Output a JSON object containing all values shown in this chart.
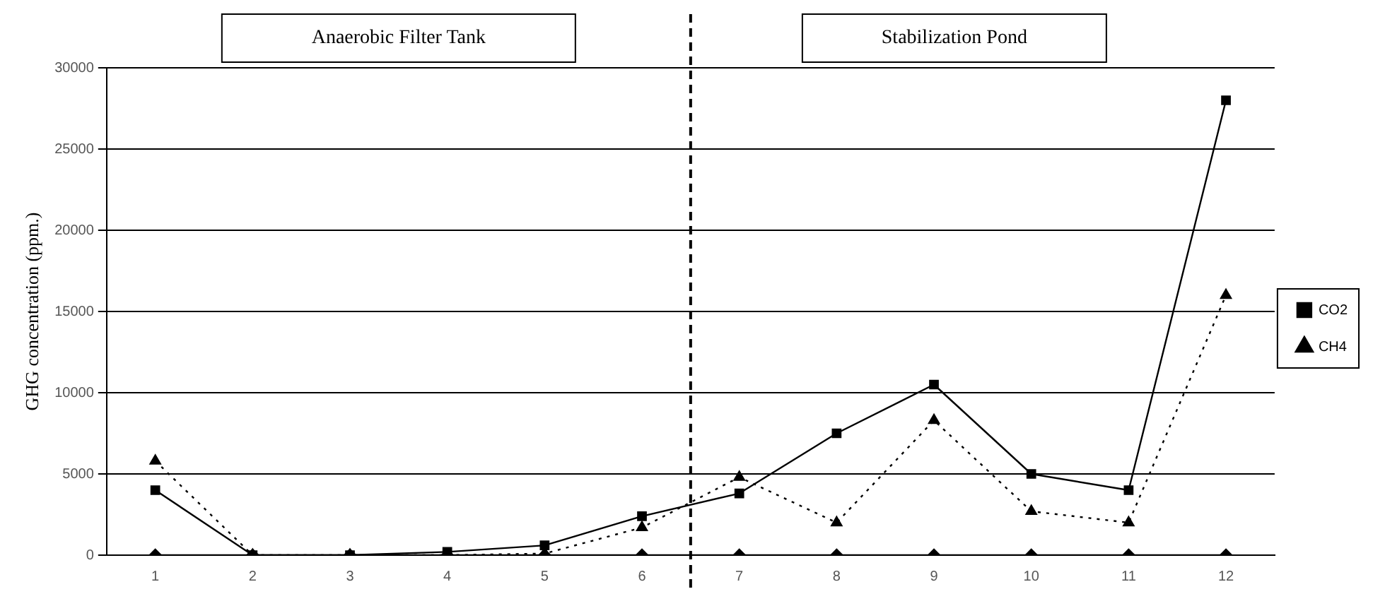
{
  "chart_data": {
    "type": "line",
    "ylabel": "GHG concentration (ppm.)",
    "x": [
      1,
      2,
      3,
      4,
      5,
      6,
      7,
      8,
      9,
      10,
      11,
      12
    ],
    "xlim": [
      0.5,
      12.5
    ],
    "xticks": [
      1,
      2,
      3,
      4,
      5,
      6,
      7,
      8,
      9,
      10,
      11,
      12
    ],
    "ylim": [
      0,
      30000
    ],
    "yticks": [
      0,
      5000,
      10000,
      15000,
      20000,
      25000,
      30000
    ],
    "grid": "y",
    "legend": "right",
    "series": [
      {
        "color": "#000000",
        "marker": "diamond",
        "line_style": "solid",
        "values": [
          0,
          0,
          0,
          0,
          0,
          0,
          0,
          0,
          0,
          0,
          0,
          0
        ]
      },
      {
        "name": "CO2",
        "color": "#000000",
        "marker": "square",
        "line_style": "solid",
        "values": [
          4000,
          0,
          0,
          200,
          600,
          2400,
          3800,
          7500,
          10500,
          5000,
          4000,
          28000
        ]
      },
      {
        "name": "CH4",
        "color": "#000000",
        "marker": "triangle",
        "line_style": "dotted",
        "values": [
          5800,
          0,
          0,
          0,
          100,
          1700,
          4800,
          2000,
          8300,
          2700,
          2000,
          16000
        ]
      }
    ],
    "ref_lines": [
      {
        "axis": "x",
        "value": 6.5,
        "line_style": "dashed",
        "color": "#000000"
      }
    ],
    "annotations": [
      "Anaerobic Filter Tank",
      "Stabilization Pond"
    ]
  }
}
